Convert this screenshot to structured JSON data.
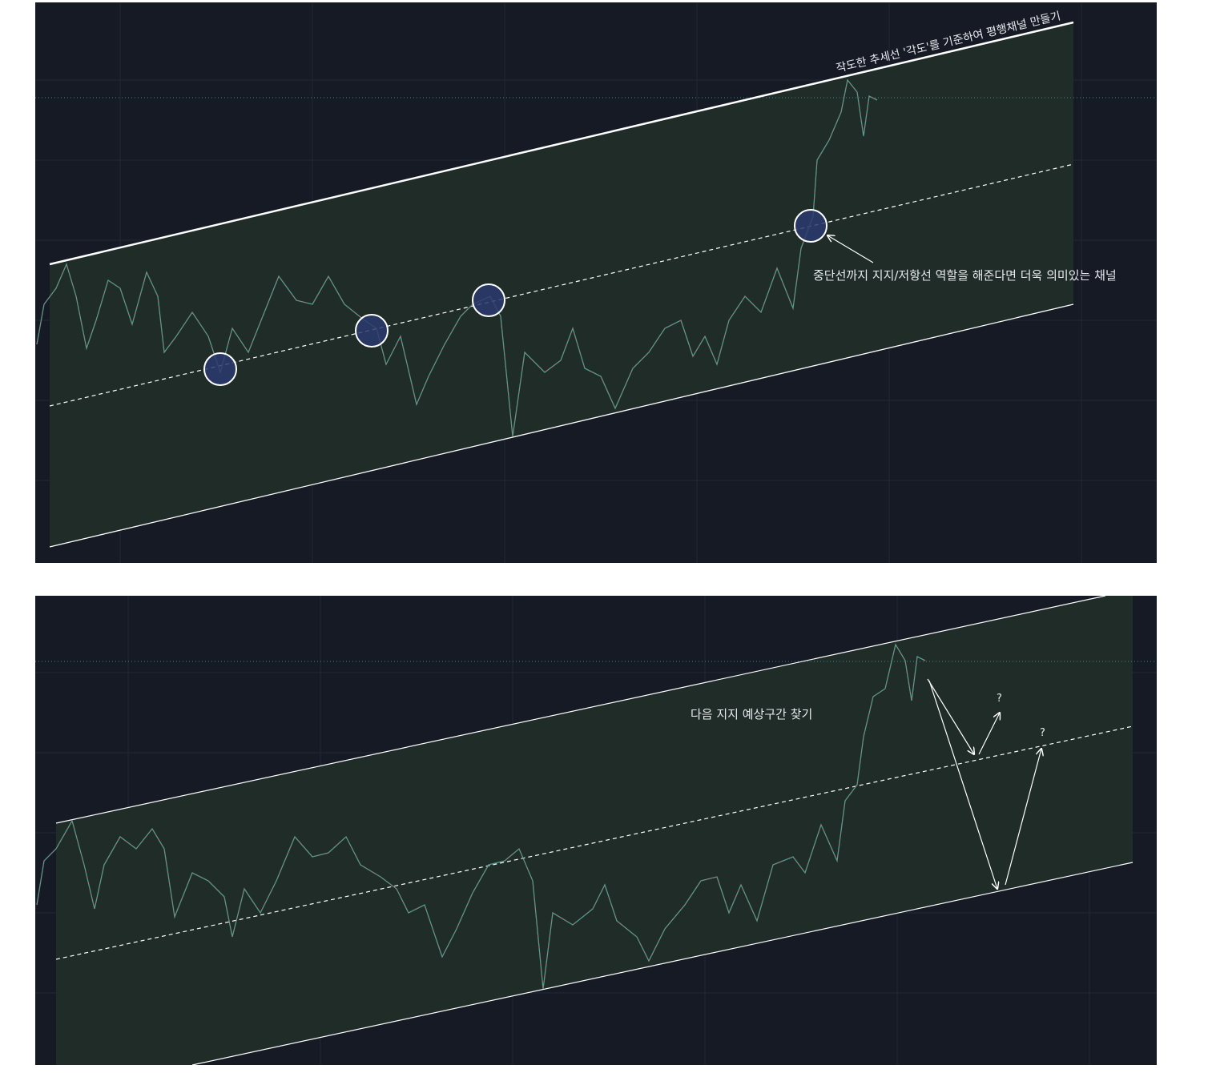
{
  "panel_1": {
    "caption": "작도한 추세선 '각도'를 기준하여 평행채널 만들기",
    "note": "중단선까지 지지/저항선 역할을 해준다면 더욱 의미있는 채널"
  },
  "panel_2": {
    "caption": "다음 지지 예상구간 찾기",
    "marks": [
      "?",
      "?"
    ]
  }
}
